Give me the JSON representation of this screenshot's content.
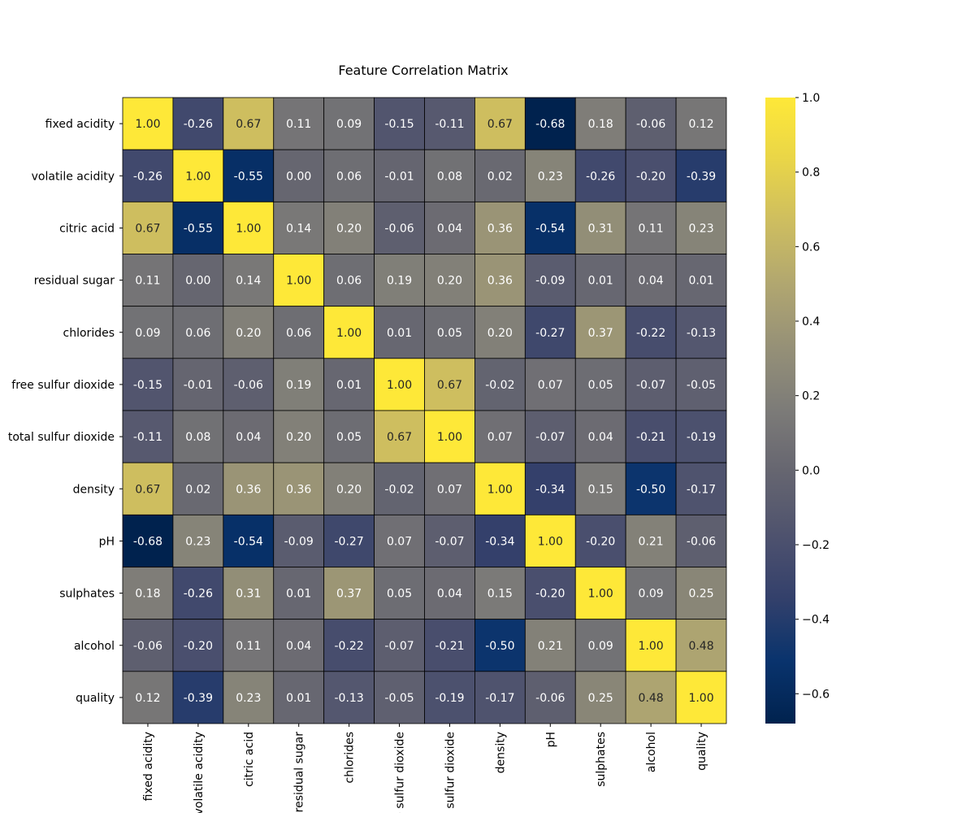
{
  "chart_data": {
    "type": "heatmap",
    "title": "Feature Correlation Matrix",
    "colormap": "cividis",
    "row_labels": [
      "fixed acidity",
      "volatile acidity",
      "citric acid",
      "residual sugar",
      "chlorides",
      "free sulfur dioxide",
      "total sulfur dioxide",
      "density",
      "pH",
      "sulphates",
      "alcohol",
      "quality"
    ],
    "col_labels": [
      "fixed acidity",
      "volatile acidity",
      "citric acid",
      "residual sugar",
      "chlorides",
      "free sulfur dioxide",
      "total sulfur dioxide",
      "density",
      "pH",
      "sulphates",
      "alcohol",
      "quality"
    ],
    "values": [
      [
        1.0,
        -0.26,
        0.67,
        0.11,
        0.09,
        -0.15,
        -0.11,
        0.67,
        -0.68,
        0.18,
        -0.06,
        0.12
      ],
      [
        -0.26,
        1.0,
        -0.55,
        0.0,
        0.06,
        -0.01,
        0.08,
        0.02,
        0.23,
        -0.26,
        -0.2,
        -0.39
      ],
      [
        0.67,
        -0.55,
        1.0,
        0.14,
        0.2,
        -0.06,
        0.04,
        0.36,
        -0.54,
        0.31,
        0.11,
        0.23
      ],
      [
        0.11,
        0.0,
        0.14,
        1.0,
        0.06,
        0.19,
        0.2,
        0.36,
        -0.09,
        0.01,
        0.04,
        0.01
      ],
      [
        0.09,
        0.06,
        0.2,
        0.06,
        1.0,
        0.01,
        0.05,
        0.2,
        -0.27,
        0.37,
        -0.22,
        -0.13
      ],
      [
        -0.15,
        -0.01,
        -0.06,
        0.19,
        0.01,
        1.0,
        0.67,
        -0.02,
        0.07,
        0.05,
        -0.07,
        -0.05
      ],
      [
        -0.11,
        0.08,
        0.04,
        0.2,
        0.05,
        0.67,
        1.0,
        0.07,
        -0.07,
        0.04,
        -0.21,
        -0.19
      ],
      [
        0.67,
        0.02,
        0.36,
        0.36,
        0.2,
        -0.02,
        0.07,
        1.0,
        -0.34,
        0.15,
        -0.5,
        -0.17
      ],
      [
        -0.68,
        0.23,
        -0.54,
        -0.09,
        -0.27,
        0.07,
        -0.07,
        -0.34,
        1.0,
        -0.2,
        0.21,
        -0.06
      ],
      [
        0.18,
        -0.26,
        0.31,
        0.01,
        0.37,
        0.05,
        0.04,
        0.15,
        -0.2,
        1.0,
        0.09,
        0.25
      ],
      [
        -0.06,
        -0.2,
        0.11,
        0.04,
        -0.22,
        -0.07,
        -0.21,
        -0.5,
        0.21,
        0.09,
        1.0,
        0.48
      ],
      [
        0.12,
        -0.39,
        0.23,
        0.01,
        -0.13,
        -0.05,
        -0.19,
        -0.17,
        -0.06,
        0.25,
        0.48,
        1.0
      ]
    ],
    "vmin": -0.68,
    "vmax": 1.0,
    "colorbar_ticks": [
      1.0,
      0.8,
      0.6,
      0.4,
      0.2,
      0.0,
      -0.2,
      -0.4,
      -0.6
    ],
    "colorbar_tick_labels": [
      "1.0",
      "0.8",
      "0.6",
      "0.4",
      "0.2",
      "0.0",
      "−0.2",
      "−0.4",
      "−0.6"
    ]
  }
}
